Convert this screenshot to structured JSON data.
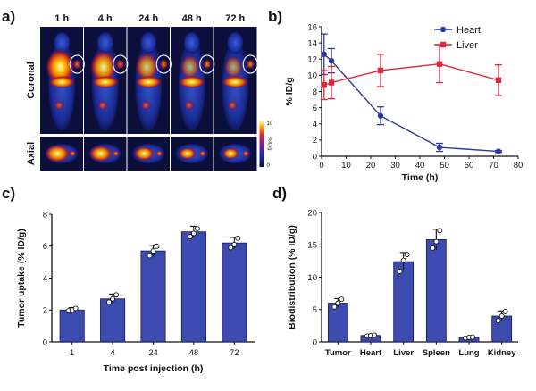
{
  "panels": {
    "a": "a)",
    "b": "b)",
    "c": "c)",
    "d": "d)"
  },
  "imaging": {
    "timepoints": [
      "1 h",
      "4 h",
      "24 h",
      "48 h",
      "72 h"
    ],
    "row_labels": [
      "Coronal",
      "Axial"
    ],
    "colorbar": {
      "max": "10",
      "min": "0",
      "unit": "%ID/g"
    }
  },
  "chart_data": [
    {
      "id": "b",
      "type": "line",
      "ylabel": "% ID/g",
      "xlabel": "Time (h)",
      "xlim": [
        0,
        80
      ],
      "ylim": [
        0,
        16
      ],
      "xticks": [
        0,
        10,
        20,
        30,
        40,
        50,
        60,
        70,
        80
      ],
      "yticks": [
        0,
        2,
        4,
        6,
        8,
        10,
        12,
        14,
        16
      ],
      "legend": "top-right",
      "series": [
        {
          "name": "Heart",
          "color": "#2f3a9e",
          "x": [
            1,
            4,
            24,
            48,
            72
          ],
          "y": [
            12.6,
            11.8,
            5.0,
            1.1,
            0.6
          ],
          "err": [
            2.5,
            1.5,
            1.1,
            0.5,
            0.1
          ]
        },
        {
          "name": "Liver",
          "color": "#d62b3a",
          "x": [
            1,
            4,
            24,
            48,
            72
          ],
          "y": [
            8.8,
            9.1,
            10.6,
            11.4,
            9.4
          ],
          "err": [
            1.8,
            2.0,
            2.0,
            2.3,
            1.9
          ]
        }
      ]
    },
    {
      "id": "c",
      "type": "bar",
      "ylabel": "Tumor uptake (% ID/g)",
      "xlabel": "Time post injection (h)",
      "categories": [
        "1",
        "4",
        "24",
        "48",
        "72"
      ],
      "values": [
        2.0,
        2.7,
        5.7,
        6.9,
        6.2
      ],
      "err": [
        0.15,
        0.3,
        0.35,
        0.35,
        0.35
      ],
      "points": [
        [
          1.95,
          2.0,
          2.1
        ],
        [
          2.5,
          2.7,
          2.95
        ],
        [
          5.4,
          5.7,
          6.0
        ],
        [
          6.6,
          6.8,
          7.1
        ],
        [
          5.9,
          6.1,
          6.5
        ]
      ],
      "ylim": [
        0,
        8
      ],
      "yticks": [
        0,
        2,
        4,
        6,
        8
      ],
      "color": "#3b4bb0"
    },
    {
      "id": "d",
      "type": "bar",
      "ylabel": "Biodistribution (% ID/g)",
      "xlabel": "",
      "categories": [
        "Tumor",
        "Heart",
        "Liver",
        "Spleen",
        "Lung",
        "Kidney"
      ],
      "values": [
        6.0,
        1.0,
        12.4,
        15.8,
        0.7,
        4.0
      ],
      "err": [
        0.7,
        0.15,
        1.4,
        1.6,
        0.12,
        0.8
      ],
      "points": [
        [
          5.4,
          6.0,
          6.6
        ],
        [
          0.9,
          1.0,
          1.05
        ],
        [
          10.9,
          12.6,
          13.5
        ],
        [
          14.5,
          15.5,
          17.2
        ],
        [
          0.6,
          0.7,
          0.75
        ],
        [
          3.3,
          4.0,
          4.7
        ]
      ],
      "ylim": [
        0,
        20
      ],
      "yticks": [
        0,
        5,
        10,
        15,
        20
      ],
      "color": "#3b4bb0"
    }
  ]
}
